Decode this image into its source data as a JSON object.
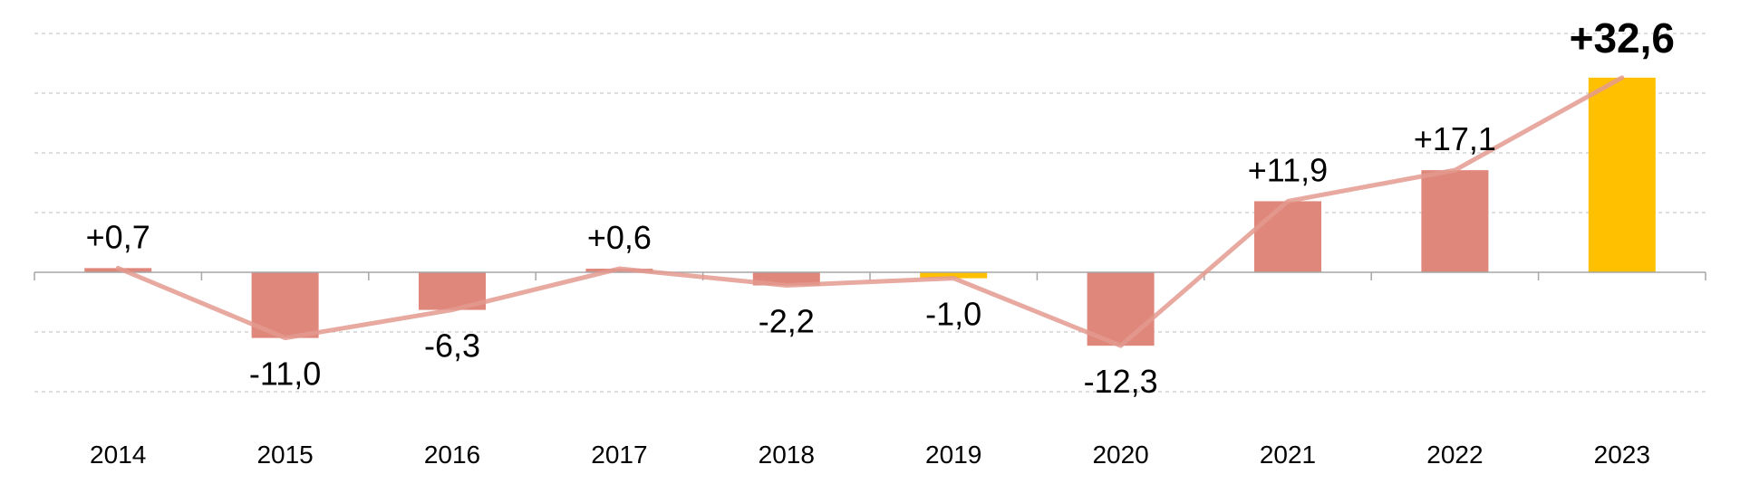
{
  "chart_data": {
    "type": "bar",
    "categories": [
      "2014",
      "2015",
      "2016",
      "2017",
      "2018",
      "2019",
      "2020",
      "2021",
      "2022",
      "2023"
    ],
    "values": [
      0.7,
      -11.0,
      -6.3,
      0.6,
      -2.2,
      -1.0,
      -12.3,
      11.9,
      17.1,
      32.6
    ],
    "data_labels": [
      "+0,7",
      "-11,0",
      "-6,3",
      "+0,6",
      "-2,2",
      "-1,0",
      "-12,3",
      "+11,9",
      "+17,1",
      "+32,6"
    ],
    "highlight": [
      false,
      false,
      false,
      false,
      false,
      true,
      false,
      false,
      false,
      true
    ],
    "emphasized_label_index": 9,
    "overlay_line": true,
    "title": "",
    "xlabel": "",
    "ylabel": "",
    "ylim": [
      -20,
      40
    ],
    "grid": true,
    "legend": "none",
    "colors": {
      "bar": "#e0877b",
      "highlight_bar": "#ffc000",
      "line": "#e39a8f",
      "emphasis_label": "#c9553f",
      "label": "#000000",
      "tick_label": "#000000",
      "grid": "#bdbdbd",
      "axis": "#a6a6a6"
    }
  }
}
